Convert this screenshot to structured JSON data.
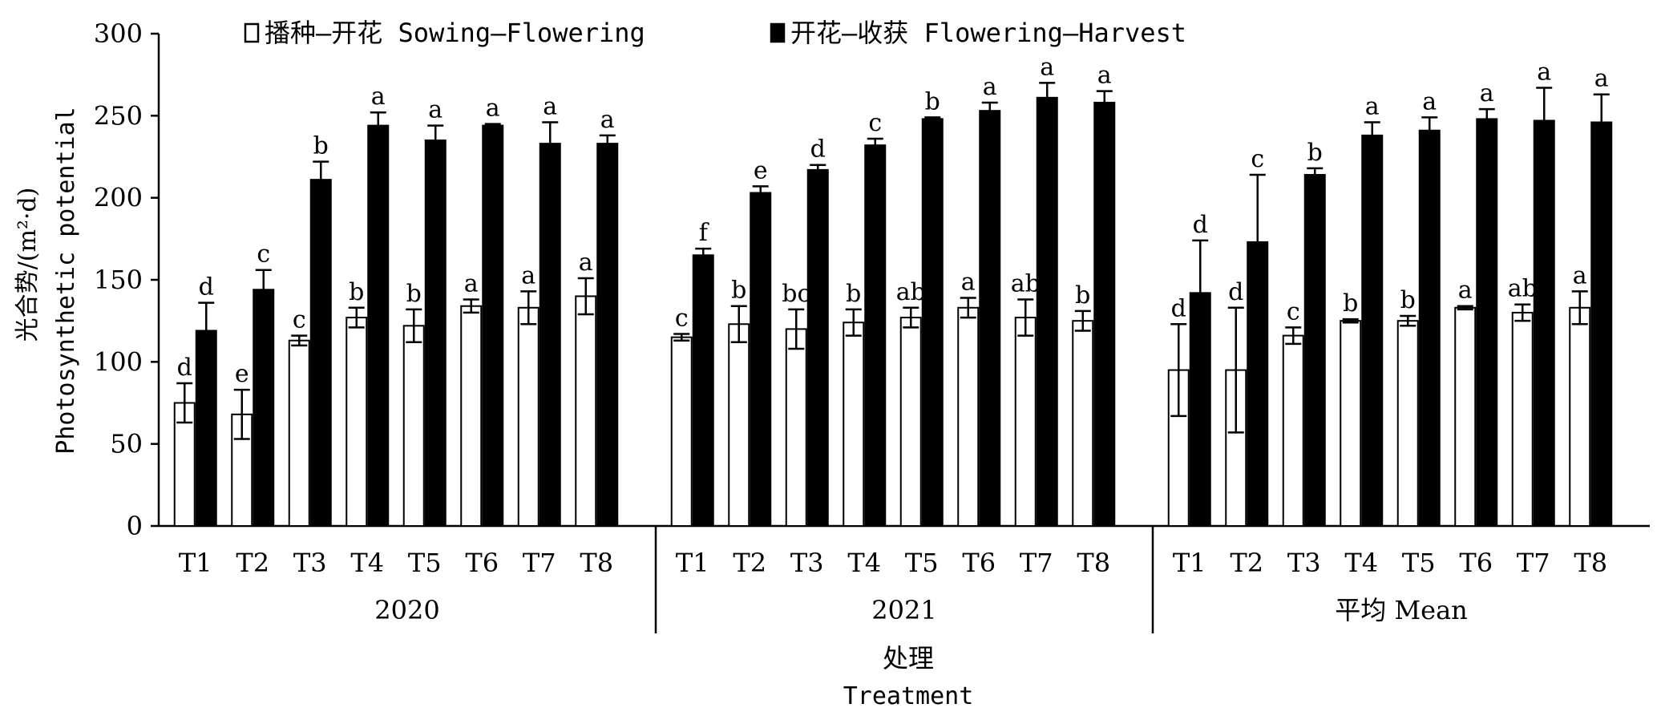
{
  "chart_data": {
    "type": "bar",
    "ylabel_cn": "光合势/(m²·d)",
    "ylabel_en": "Photosynthetic potential",
    "xlabel_cn": "处理",
    "xlabel_en": "Treatment",
    "ylim": [
      0,
      300
    ],
    "yticks": [
      "0",
      "50",
      "100",
      "150",
      "200",
      "250",
      "300"
    ],
    "legend_position": "top",
    "legend": [
      {
        "label": "播种—开花 Sowing—Flowering",
        "fill": "#ffffff"
      },
      {
        "label": "开花—收获 Flowering—Harvest",
        "fill": "#000000"
      }
    ],
    "groups": [
      {
        "label": "2020",
        "categories": [
          "T1",
          "T2",
          "T3",
          "T4",
          "T5",
          "T6",
          "T7",
          "T8"
        ]
      },
      {
        "label": "2021",
        "categories": [
          "T1",
          "T2",
          "T3",
          "T4",
          "T5",
          "T6",
          "T7",
          "T8"
        ]
      },
      {
        "label": "平均 Mean",
        "categories": [
          "T1",
          "T2",
          "T3",
          "T4",
          "T5",
          "T6",
          "T7",
          "T8"
        ]
      }
    ],
    "series": [
      {
        "name": "播种—开花 Sowing—Flowering",
        "values": [
          [
            75,
            68,
            113,
            127,
            122,
            134,
            133,
            140
          ],
          [
            115,
            123,
            120,
            124,
            127,
            133,
            127,
            125
          ],
          [
            95,
            95,
            116,
            125,
            125,
            133,
            130,
            133
          ]
        ],
        "errors": [
          [
            12,
            15,
            3,
            6,
            10,
            4,
            10,
            11
          ],
          [
            2,
            11,
            12,
            8,
            6,
            6,
            11,
            6
          ],
          [
            28,
            38,
            5,
            1,
            3,
            1,
            5,
            10
          ]
        ],
        "sig": [
          [
            "d",
            "e",
            "c",
            "b",
            "b",
            "a",
            "a",
            "a"
          ],
          [
            "c",
            "b",
            "bc",
            "b",
            "ab",
            "a",
            "ab",
            "b"
          ],
          [
            "d",
            "d",
            "c",
            "b",
            "b",
            "a",
            "ab",
            "a"
          ]
        ]
      },
      {
        "name": "开花—收获 Flowering—Harvest",
        "values": [
          [
            119,
            144,
            211,
            244,
            235,
            244,
            233,
            233
          ],
          [
            165,
            203,
            217,
            232,
            248,
            253,
            261,
            258
          ],
          [
            142,
            173,
            214,
            238,
            241,
            248,
            247,
            246
          ]
        ],
        "errors": [
          [
            17,
            12,
            11,
            8,
            9,
            1,
            13,
            5
          ],
          [
            4,
            4,
            3,
            4,
            1,
            5,
            9,
            7
          ],
          [
            32,
            41,
            4,
            8,
            8,
            6,
            20,
            17
          ]
        ],
        "sig": [
          [
            "d",
            "c",
            "b",
            "a",
            "a",
            "a",
            "a",
            "a"
          ],
          [
            "f",
            "e",
            "d",
            "c",
            "b",
            "a",
            "a",
            "a"
          ],
          [
            "d",
            "c",
            "b",
            "a",
            "a",
            "a",
            "a",
            "a"
          ]
        ]
      }
    ]
  }
}
